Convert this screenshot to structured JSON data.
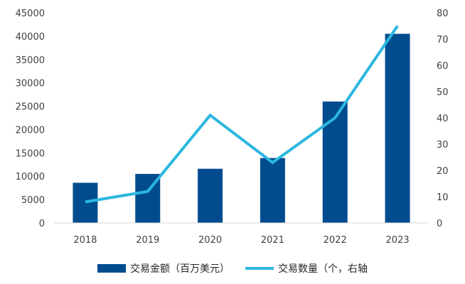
{
  "chart_data": {
    "type": "bar+line",
    "categories": [
      "2018",
      "2019",
      "2020",
      "2021",
      "2022",
      "2023"
    ],
    "series": [
      {
        "name": "交易金额（百万美元）",
        "type": "bar",
        "axis": "left",
        "color": "#004C8F",
        "values": [
          8600,
          10500,
          11600,
          13900,
          26000,
          40500
        ]
      },
      {
        "name": "交易数量（个，右轴",
        "type": "line",
        "axis": "right",
        "color": "#2BB7E0",
        "values": [
          8,
          12,
          41,
          23,
          40,
          75
        ]
      }
    ],
    "ylim_left": [
      0,
      45000
    ],
    "yticks_left": [
      "0",
      "5000",
      "10000",
      "15000",
      "20000",
      "25000",
      "30000",
      "35000",
      "40000",
      "45000"
    ],
    "ylim_right": [
      0,
      80
    ],
    "yticks_right": [
      "0",
      "10",
      "20",
      "30",
      "40",
      "50",
      "60",
      "70",
      "80"
    ],
    "grid": false,
    "legend": "bottom",
    "title": "",
    "xlabel": "",
    "ylabel": ""
  }
}
